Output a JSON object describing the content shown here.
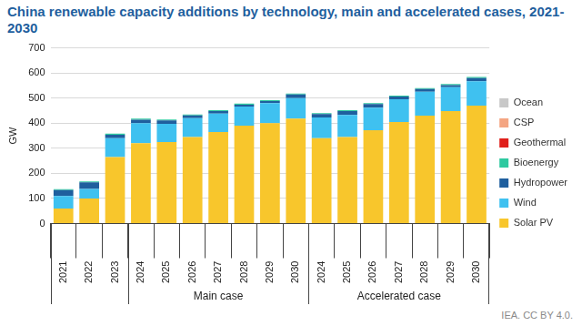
{
  "chart_data": {
    "type": "bar",
    "title": "China renewable capacity additions by technology, main and accelerated cases, 2021-2030",
    "y_label": "GW",
    "source": "IEA. CC BY 4.0.",
    "categories": [
      "2021",
      "2022",
      "2023",
      "2024",
      "2025",
      "2026",
      "2027",
      "2028",
      "2029",
      "2030",
      "2024",
      "2025",
      "2026",
      "2027",
      "2028",
      "2029",
      "2030"
    ],
    "groups": [
      {
        "name": null,
        "size": 3
      },
      {
        "name": "Main case",
        "size": 7
      },
      {
        "name": "Accelerated case",
        "size": 7
      }
    ],
    "series": [
      {
        "name": "Solar PV",
        "color": "#f8c62c",
        "values": [
          60,
          100,
          265,
          320,
          325,
          345,
          365,
          390,
          400,
          418,
          340,
          345,
          372,
          405,
          430,
          448,
          470
        ]
      },
      {
        "name": "Wind",
        "color": "#3fc1f0",
        "values": [
          50,
          38,
          75,
          80,
          72,
          75,
          73,
          76,
          80,
          82,
          83,
          88,
          90,
          90,
          95,
          95,
          97
        ]
      },
      {
        "name": "Hydropower",
        "color": "#1f5f9e",
        "values": [
          23,
          26,
          14,
          14,
          14,
          11,
          10,
          8,
          8,
          14,
          13,
          15,
          14,
          11,
          11,
          9,
          13
        ]
      },
      {
        "name": "Bioenergy",
        "color": "#2ec9a0",
        "values": [
          4,
          4,
          4,
          4,
          4,
          4,
          4,
          4,
          4,
          4,
          4,
          4,
          4,
          4,
          4,
          4,
          4
        ]
      },
      {
        "name": "Geothermal",
        "color": "#e0201b",
        "values": [
          0,
          0,
          0,
          0,
          0,
          0,
          0,
          0,
          0,
          0,
          0,
          0,
          0,
          0,
          0,
          0,
          0
        ]
      },
      {
        "name": "CSP",
        "color": "#f4a582",
        "values": [
          0,
          0,
          0,
          0,
          0,
          0,
          0,
          0,
          0,
          0,
          0,
          0,
          0,
          0,
          0,
          0,
          0
        ]
      },
      {
        "name": "Ocean",
        "color": "#c8c8c8",
        "values": [
          0,
          0,
          0,
          0,
          0,
          0,
          0,
          0,
          0,
          0,
          0,
          0,
          0,
          0,
          0,
          0,
          0
        ]
      }
    ],
    "stacked": true,
    "legend": "right",
    "grid": true,
    "ylim": [
      0,
      700
    ],
    "yticks": [
      0,
      100,
      200,
      300,
      400,
      500,
      600,
      700
    ]
  }
}
